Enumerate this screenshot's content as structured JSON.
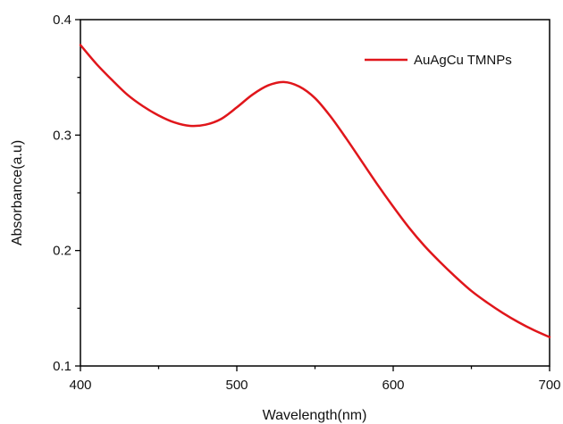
{
  "chart_data": {
    "type": "line",
    "title": "",
    "xlabel": "Wavelength(nm)",
    "ylabel": "Absorbance(a.u)",
    "xlim": [
      400,
      700
    ],
    "ylim": [
      0.1,
      0.4
    ],
    "x_ticks": [
      400,
      500,
      600,
      700
    ],
    "x_tick_labels": [
      "400",
      "500",
      "600",
      "700"
    ],
    "y_ticks": [
      0.1,
      0.2,
      0.3,
      0.4
    ],
    "y_tick_labels": [
      "0.1",
      "0.2",
      "0.3",
      "0.4"
    ],
    "grid": false,
    "legend_position": "top-right",
    "series": [
      {
        "name": "AuAgCu TMNPs",
        "color": "#e0161b",
        "x": [
          400,
          410,
          420,
          430,
          440,
          450,
          460,
          470,
          480,
          490,
          500,
          510,
          520,
          530,
          540,
          550,
          560,
          570,
          580,
          590,
          600,
          610,
          620,
          630,
          640,
          650,
          660,
          670,
          680,
          690,
          700
        ],
        "y": [
          0.378,
          0.362,
          0.348,
          0.335,
          0.325,
          0.317,
          0.311,
          0.308,
          0.309,
          0.314,
          0.324,
          0.335,
          0.343,
          0.346,
          0.342,
          0.332,
          0.316,
          0.297,
          0.277,
          0.257,
          0.238,
          0.22,
          0.204,
          0.19,
          0.177,
          0.165,
          0.155,
          0.146,
          0.138,
          0.131,
          0.125
        ]
      }
    ]
  }
}
